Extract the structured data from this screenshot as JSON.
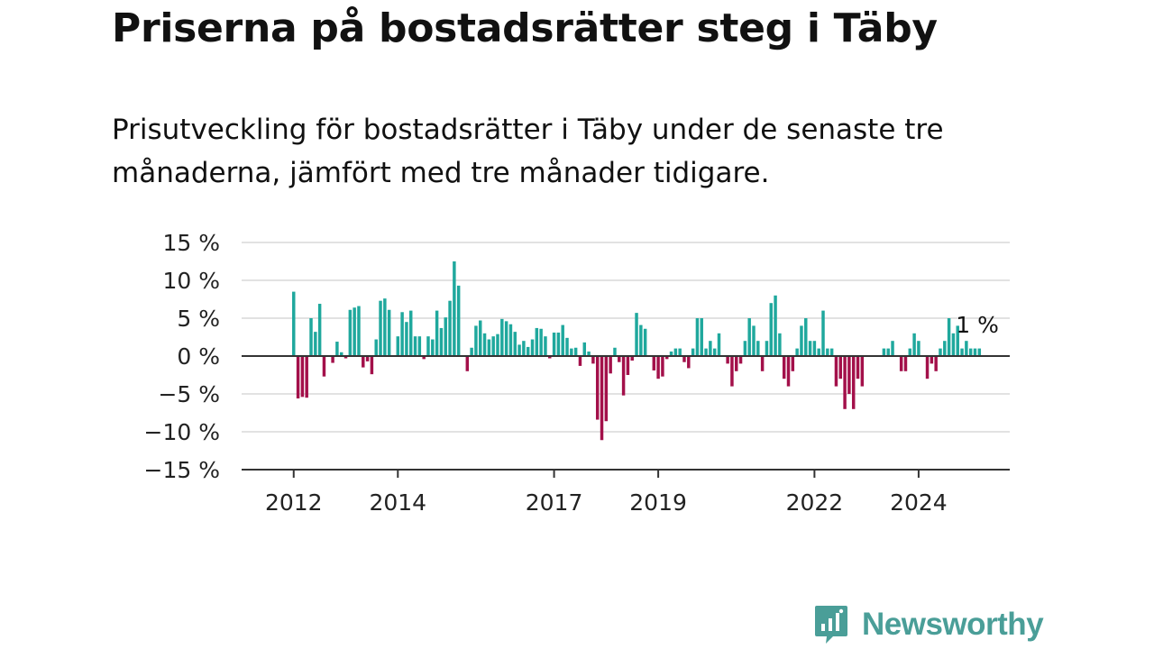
{
  "title": "Priserna på bostadsrätter steg i Täby",
  "subtitle": "Prisutveckling för bostadsrätter i Täby under de senaste tre månaderna, jämfört med tre månader tidigare.",
  "brand": "Newsworthy",
  "colors": {
    "positive": "#1fa89d",
    "negative": "#a3104a",
    "grid": "#d9d9d9",
    "axis": "#333333",
    "brand": "#4a9e98"
  },
  "chart_data": {
    "type": "bar",
    "ylim": [
      -15,
      15
    ],
    "y_ticks": [
      15,
      10,
      5,
      0,
      -5,
      -10,
      -15
    ],
    "y_tick_labels": [
      "15 %",
      "10 %",
      "5 %",
      "0 %",
      "−5 %",
      "−10 %",
      "−15 %"
    ],
    "x_ticks": [
      {
        "label": "2012",
        "date": "2012-01"
      },
      {
        "label": "2014",
        "date": "2014-01"
      },
      {
        "label": "2017",
        "date": "2017-01"
      },
      {
        "label": "2019",
        "date": "2019-01"
      },
      {
        "label": "2022",
        "date": "2022-01"
      },
      {
        "label": "2024",
        "date": "2024-01"
      }
    ],
    "x_start": "2011-01",
    "x_end": "2025-10",
    "start_month": "2012-01",
    "last_value_label": "1 %",
    "grid": true,
    "values": [
      8.5,
      -5.6,
      -5.4,
      -5.5,
      5.0,
      3.2,
      6.9,
      -2.7,
      0.0,
      -0.9,
      1.9,
      0.5,
      -0.3,
      6.1,
      6.4,
      6.6,
      -1.5,
      -0.7,
      -2.4,
      2.2,
      7.3,
      7.6,
      6.1,
      0.0,
      2.6,
      5.8,
      4.5,
      6.0,
      2.6,
      2.6,
      -0.4,
      2.6,
      2.2,
      6.0,
      3.7,
      5.1,
      7.3,
      12.5,
      9.3,
      0.0,
      -2.0,
      1.1,
      4.0,
      4.7,
      3.0,
      2.2,
      2.6,
      2.9,
      4.9,
      4.6,
      4.2,
      3.2,
      1.5,
      2.0,
      1.2,
      2.2,
      3.7,
      3.6,
      2.6,
      -0.3,
      3.1,
      3.1,
      4.1,
      2.4,
      1.0,
      1.1,
      -1.3,
      1.8,
      0.6,
      -1.0,
      -8.4,
      -11.1,
      -8.6,
      -2.3,
      1.1,
      -0.8,
      -5.2,
      -2.5,
      -0.6,
      5.7,
      4.1,
      3.6,
      0.0,
      -1.9,
      -3.0,
      -2.7,
      -0.4,
      0.6,
      1.0,
      1.0,
      -0.8,
      -1.6,
      1.0,
      5.0,
      5.0,
      1.0,
      2.0,
      1.0,
      3.0,
      0.0,
      -1.0,
      -4.0,
      -2.0,
      -1.0,
      2.0,
      5.0,
      4.0,
      2.0,
      -2.0,
      2.0,
      7.0,
      8.0,
      3.0,
      -3.0,
      -4.0,
      -2.0,
      1.0,
      4.0,
      5.0,
      2.0,
      2.0,
      1.0,
      6.0,
      1.0,
      1.0,
      -4.0,
      -3.0,
      -7.0,
      -5.0,
      -7.0,
      -3.0,
      -4.0,
      0.0,
      0.0,
      0.0,
      0.0,
      1.0,
      1.0,
      2.0,
      0.0,
      -2.0,
      -2.0,
      1.0,
      3.0,
      2.0,
      0.0,
      -3.0,
      -1.0,
      -2.0,
      1.0,
      2.0,
      5.0,
      3.0,
      4.0,
      1.0,
      2.0,
      1.0,
      1.0,
      1.0
    ]
  }
}
